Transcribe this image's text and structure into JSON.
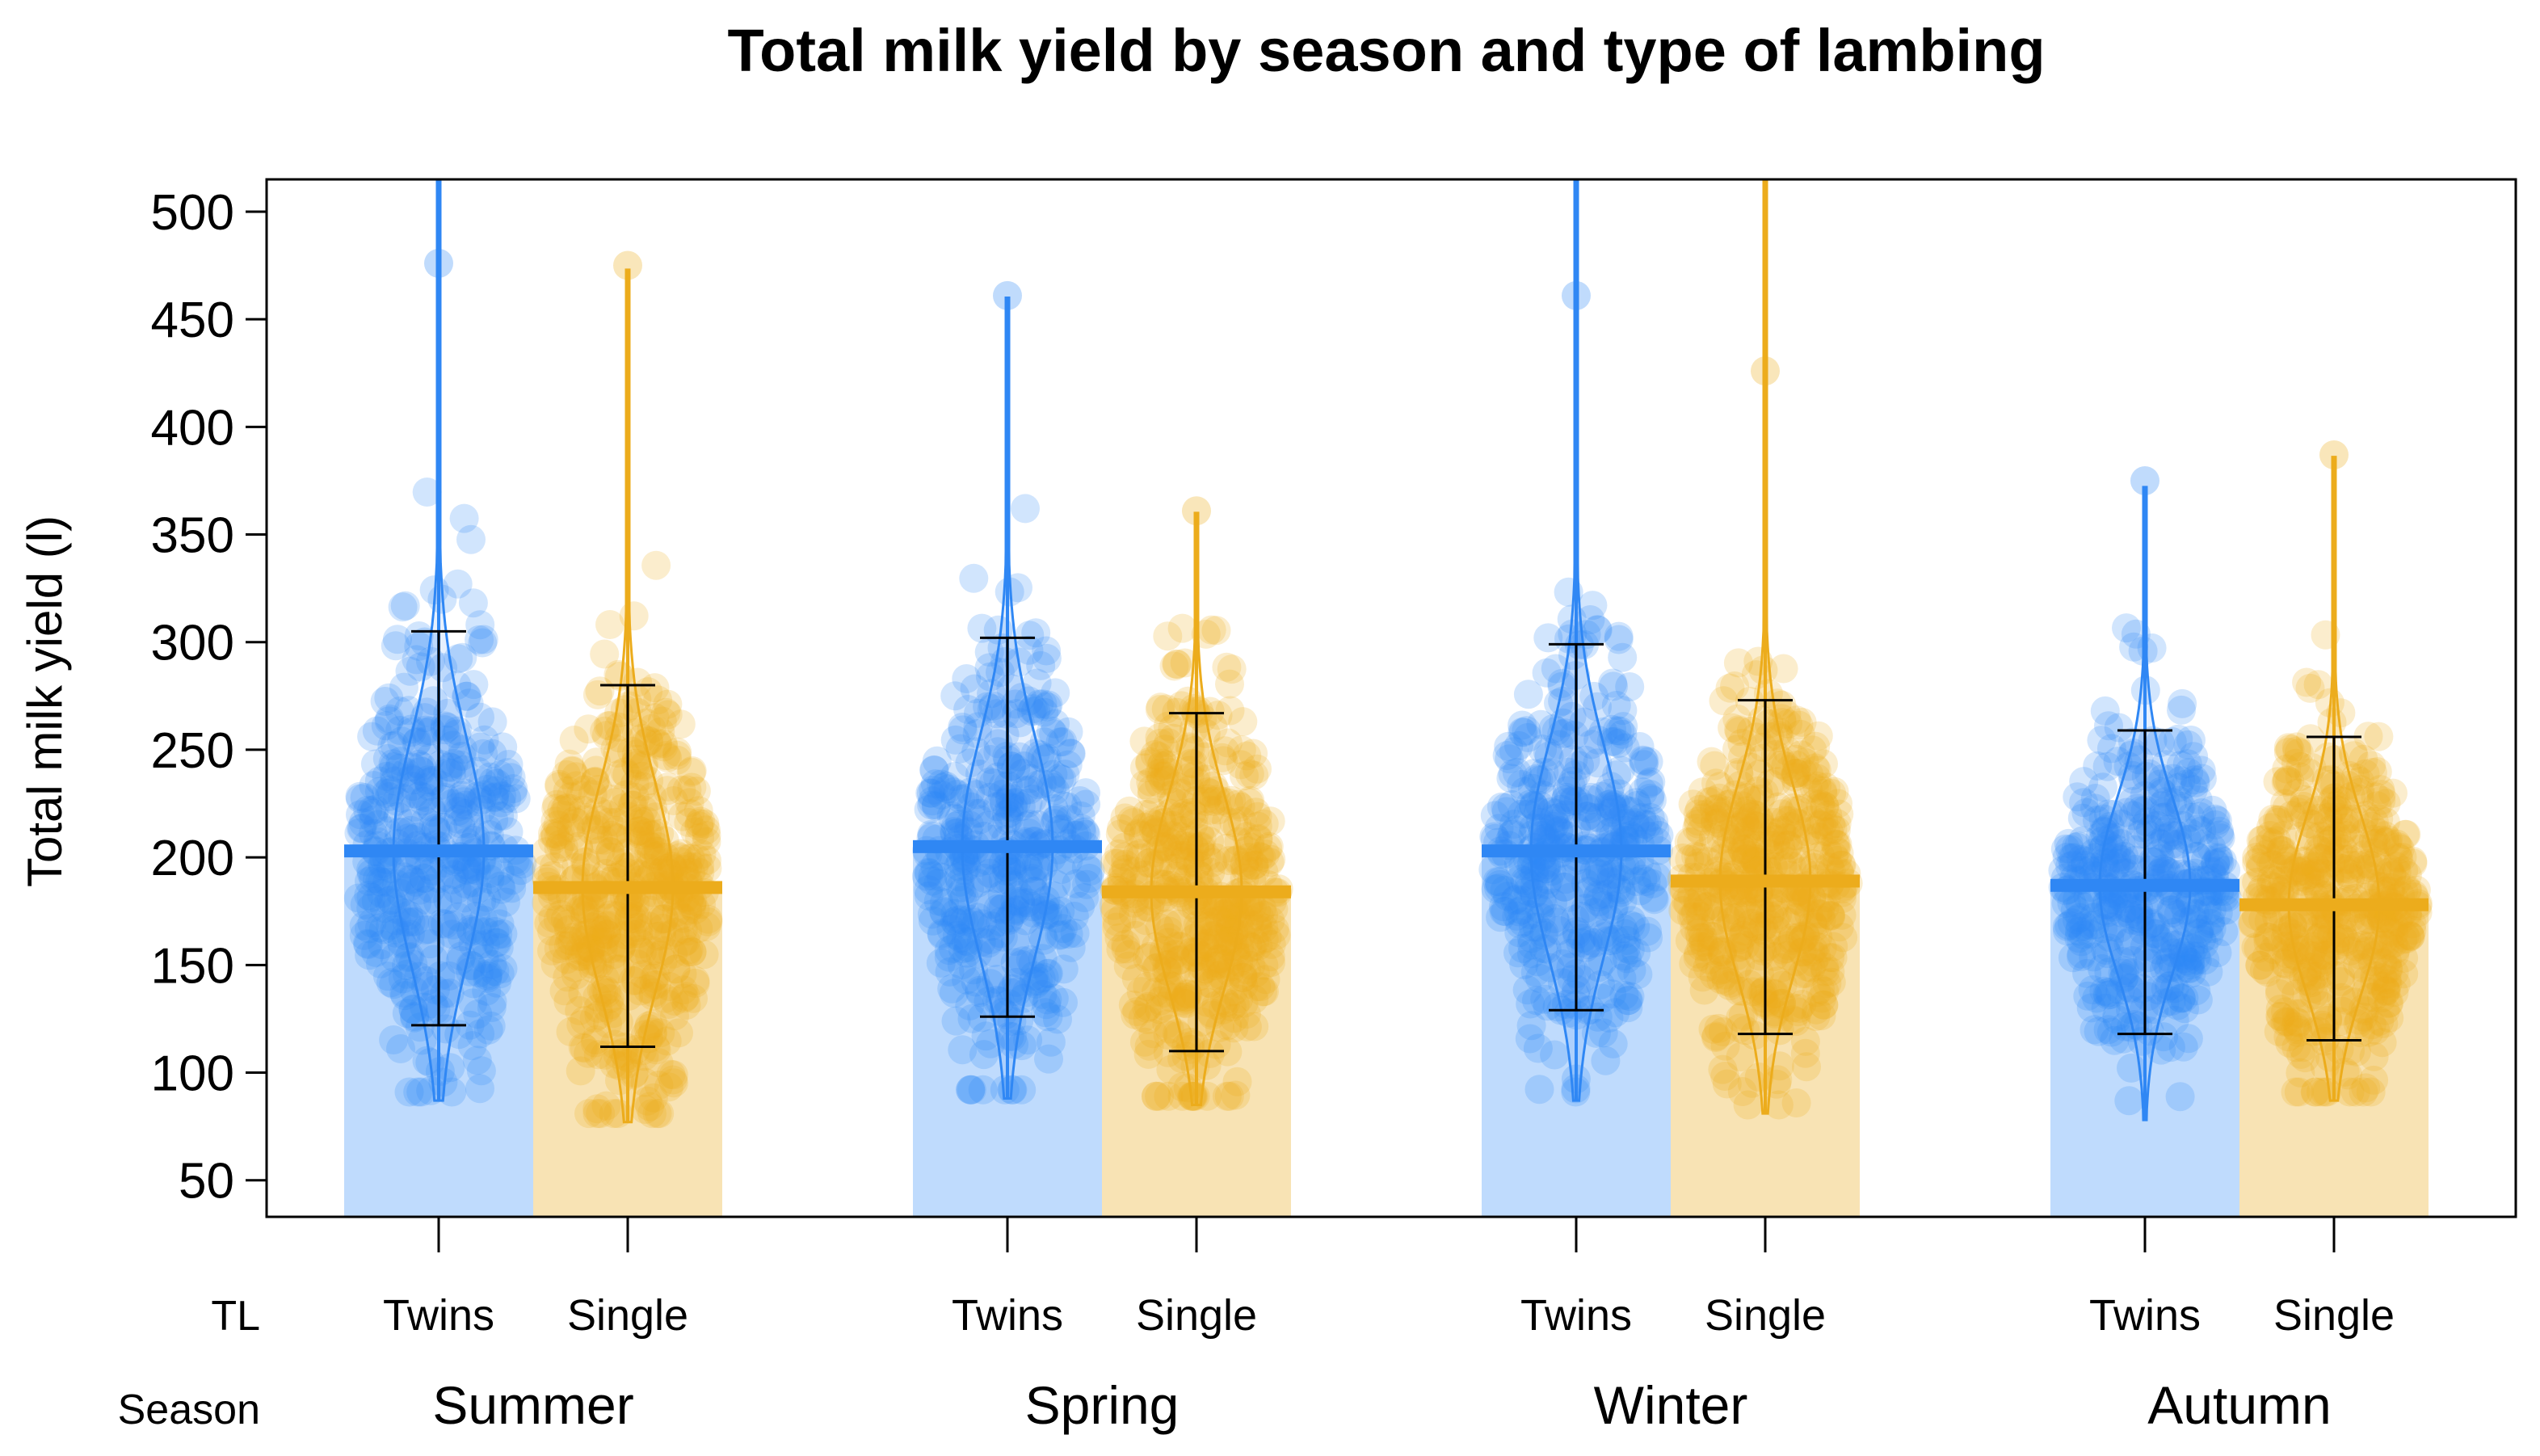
{
  "chart_data": {
    "type": "bar",
    "subtype": "pirate-plot",
    "title": "Total milk yield by season and type of lambing",
    "xlabel": "",
    "ylabel": "Total milk yield (l)",
    "ylim": [
      33,
      515
    ],
    "yticks": [
      50,
      100,
      150,
      200,
      250,
      300,
      350,
      400,
      450,
      500
    ],
    "row_labels": {
      "tl": "TL",
      "season": "Season"
    },
    "levels": [
      "Twins",
      "Single"
    ],
    "colors": {
      "Twins": "#2f87f4",
      "Single": "#ecac1c"
    },
    "groups": [
      {
        "season": "Summer",
        "bars": [
          {
            "tl": "Twins",
            "mean": 203,
            "sd_low": 122,
            "sd_high": 305,
            "min": 87,
            "max": 520,
            "raw_max": 476
          },
          {
            "tl": "Single",
            "mean": 186,
            "sd_low": 112,
            "sd_high": 280,
            "min": 77,
            "max": 473,
            "raw_max": 475
          }
        ]
      },
      {
        "season": "Spring",
        "bars": [
          {
            "tl": "Twins",
            "mean": 205,
            "sd_low": 126,
            "sd_high": 302,
            "min": 88,
            "max": 460,
            "raw_max": 461
          },
          {
            "tl": "Single",
            "mean": 184,
            "sd_low": 110,
            "sd_high": 267,
            "min": 85,
            "max": 360,
            "raw_max": 361
          }
        ]
      },
      {
        "season": "Winter",
        "bars": [
          {
            "tl": "Twins",
            "mean": 203,
            "sd_low": 129,
            "sd_high": 299,
            "min": 87,
            "max": 520,
            "raw_max": 461
          },
          {
            "tl": "Single",
            "mean": 189,
            "sd_low": 118,
            "sd_high": 273,
            "min": 81,
            "max": 520,
            "raw_max": 426
          }
        ]
      },
      {
        "season": "Autumn",
        "bars": [
          {
            "tl": "Twins",
            "mean": 187,
            "sd_low": 118,
            "sd_high": 259,
            "min": 78,
            "max": 372,
            "raw_max": 375
          },
          {
            "tl": "Single",
            "mean": 178,
            "sd_low": 115,
            "sd_high": 256,
            "min": 87,
            "max": 386,
            "raw_max": 387
          }
        ]
      }
    ],
    "legend": "none",
    "grid": false
  }
}
